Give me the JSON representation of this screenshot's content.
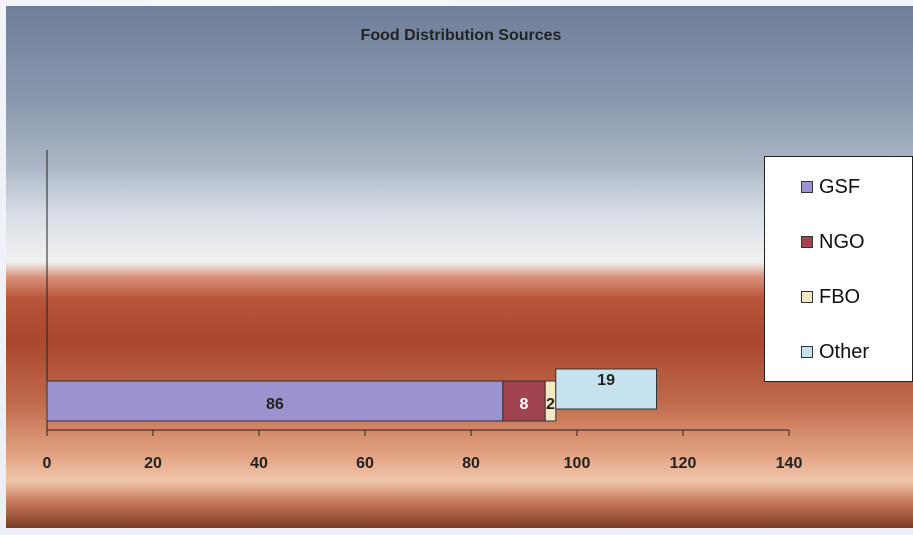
{
  "chart_data": {
    "type": "bar",
    "orientation": "horizontal",
    "stacked": true,
    "title": "Food Distribution Sources",
    "xlabel": "",
    "ylabel": "",
    "xlim": [
      0,
      140
    ],
    "x_ticks": [
      "0",
      "20",
      "40",
      "60",
      "80",
      "100",
      "120",
      "140"
    ],
    "grid": false,
    "legend_position": "right",
    "categories": [
      ""
    ],
    "series": [
      {
        "name": "GSF",
        "values": [
          86
        ],
        "color": "#9a93cf",
        "label_color": "#222222"
      },
      {
        "name": "NGO",
        "values": [
          8
        ],
        "color": "#a24450",
        "label_color": "#ffffff"
      },
      {
        "name": "FBO",
        "values": [
          2
        ],
        "color": "#f3e8c4",
        "label_color": "#222222"
      },
      {
        "name": "Other",
        "values": [
          19
        ],
        "color": "#c6e2ee",
        "label_color": "#222222"
      }
    ]
  }
}
